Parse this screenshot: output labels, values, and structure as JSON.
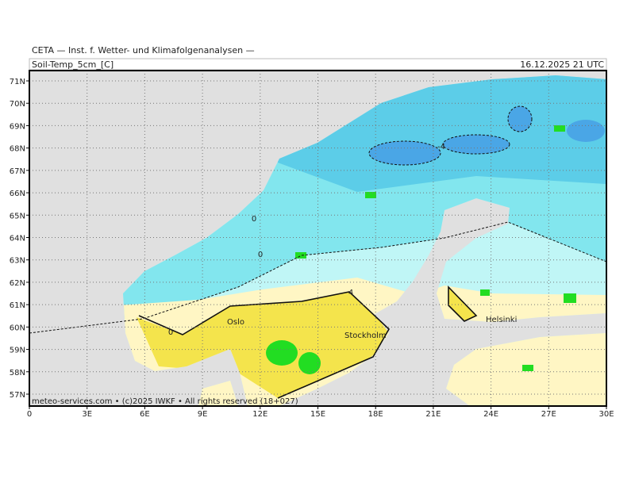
{
  "header": {
    "title": "CETA — Inst. f. Wetter- und Klimafolgenanalysen —",
    "variable": "Soil-Temp_5cm_[C]",
    "datetime": "16.12.2025 21 UTC"
  },
  "map": {
    "lat_labels": [
      "71N",
      "70N",
      "69N",
      "68N",
      "67N",
      "66N",
      "65N",
      "64N",
      "63N",
      "62N",
      "61N",
      "60N",
      "59N",
      "58N",
      "57N"
    ],
    "lon_labels": [
      "0",
      "3E",
      "6E",
      "9E",
      "12E",
      "15E",
      "18E",
      "21E",
      "24E",
      "27E",
      "30E"
    ],
    "cities": [
      "Oslo",
      "Stockholm",
      "Helsinki"
    ],
    "contour_labels": [
      "0",
      "0",
      "0",
      "-4",
      "4"
    ]
  },
  "footer": "meteo-services.com • (c)2025 IWKF • All rights reserved (18+027)"
}
